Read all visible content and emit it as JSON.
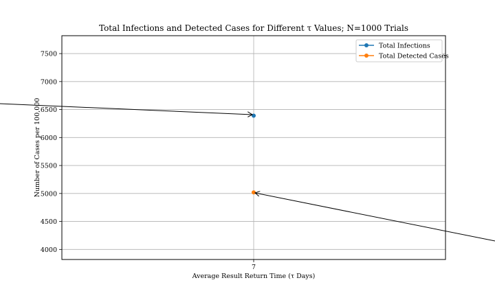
{
  "chart_data": {
    "type": "scatter",
    "title": "Total Infections and Detected Cases for Different τ Values; N=1000 Trials",
    "xlabel": "Average Result Return Time (τ Days)",
    "ylabel": "Number of Cases per 100,000",
    "x_ticks": [
      "7"
    ],
    "y_ticks": [
      4000,
      4500,
      5000,
      5500,
      6000,
      6500,
      7000,
      7500
    ],
    "ylim": [
      3820,
      7820
    ],
    "grid": true,
    "legend_position": "top-right",
    "series": [
      {
        "name": "Total Infections",
        "color": "#1f77b4",
        "points": [
          {
            "x": 7,
            "y": 6390
          }
        ]
      },
      {
        "name": "Total Detected Cases",
        "color": "#ff7f0e",
        "points": [
          {
            "x": 7,
            "y": 5020
          }
        ]
      }
    ]
  }
}
